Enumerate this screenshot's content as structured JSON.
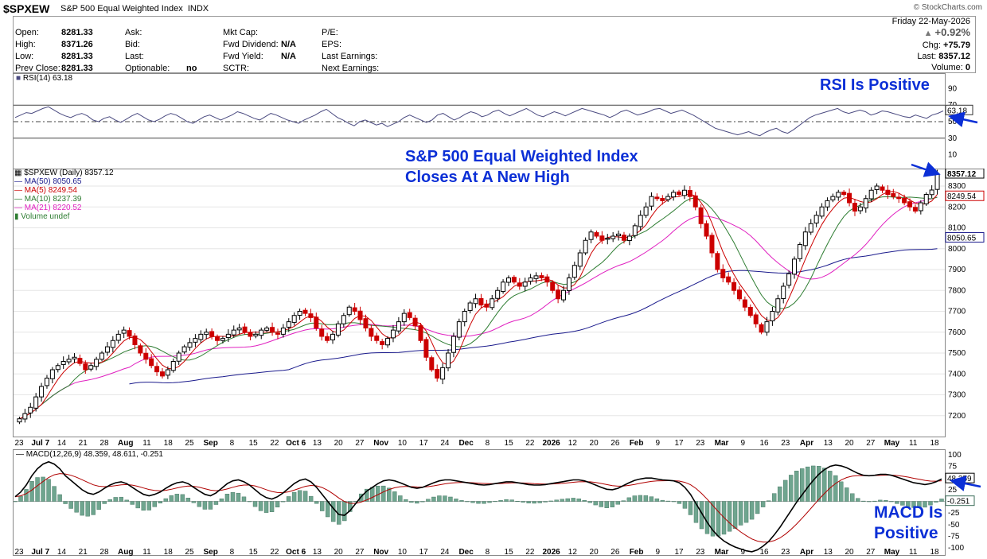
{
  "header": {
    "symbol": "$SPXEW",
    "name": "S&P 500 Equal Weighted Index",
    "exchange": "INDX",
    "logo": "© StockCharts.com"
  },
  "info": {
    "col1": [
      {
        "label": "Open:",
        "value": "8281.33"
      },
      {
        "label": "High:",
        "value": "8371.26"
      },
      {
        "label": "Low:",
        "value": "8281.33"
      },
      {
        "label": "Prev Close:",
        "value": "8281.33"
      }
    ],
    "col2": [
      {
        "label": "Ask:",
        "value": ""
      },
      {
        "label": "Bid:",
        "value": ""
      },
      {
        "label": "Last:",
        "value": ""
      },
      {
        "label": "Optionable:",
        "value": "no"
      }
    ],
    "col3": [
      {
        "label": "Mkt Cap:",
        "value": ""
      },
      {
        "label": "Fwd Dividend:",
        "value": "N/A"
      },
      {
        "label": "Fwd Yield:",
        "value": "N/A"
      },
      {
        "label": "SCTR:",
        "value": ""
      }
    ],
    "col4": [
      {
        "label": "P/E:",
        "value": ""
      },
      {
        "label": "EPS:",
        "value": ""
      },
      {
        "label": "Last Earnings:",
        "value": ""
      },
      {
        "label": "Next Earnings:",
        "value": ""
      }
    ],
    "date": "Friday  22-May-2026",
    "pct_change": "+0.92%",
    "chg_label": "Chg:",
    "chg_value": "+75.79",
    "last_label": "Last:",
    "last_value": "8357.12",
    "volume_label": "Volume:",
    "volume_value": "0"
  },
  "annotations": {
    "rsi": "RSI Is Positive",
    "price_line1": "S&P 500 Equal Weighted Index",
    "price_line2": "Closes At A New High",
    "macd_line1": "MACD Is",
    "macd_line2": "Positive"
  },
  "colors": {
    "up": "#000000",
    "down": "#cc0000",
    "ma50": "#1a1a8c",
    "ma5": "#cc0000",
    "ma10": "#2e7d32",
    "ma21": "#e020c0",
    "rsi": "#4a4a80",
    "macd": "#000000",
    "signal": "#b00000",
    "hist": "#6fa58f",
    "annotation": "#0b2fd6"
  },
  "chart_data": [
    {
      "type": "line",
      "name": "RSI",
      "legend": "RSI(14) 63.18",
      "last_label": "63.18",
      "ylim": [
        0,
        100
      ],
      "yticks": [
        90,
        70,
        50,
        30,
        10
      ],
      "levels": [
        70,
        50,
        30
      ],
      "values": [
        55,
        58,
        61,
        60,
        63,
        66,
        68,
        64,
        60,
        57,
        55,
        58,
        60,
        57,
        52,
        50,
        54,
        56,
        52,
        49,
        53,
        57,
        60,
        56,
        52,
        50,
        53,
        57,
        60,
        58,
        54,
        50,
        48,
        52,
        56,
        58,
        55,
        52,
        55,
        58,
        62,
        60,
        57,
        54,
        52,
        56,
        60,
        58,
        55,
        52,
        50,
        48,
        52,
        55,
        58,
        62,
        65,
        60,
        55,
        52,
        48,
        45,
        50,
        52,
        49,
        46,
        48,
        44,
        47,
        50,
        55,
        58,
        55,
        52,
        49,
        52,
        58,
        60,
        56,
        52,
        55,
        59,
        62,
        60,
        56,
        58,
        62,
        64,
        60,
        57,
        60,
        63,
        66,
        62,
        58,
        56,
        59,
        62,
        60,
        57,
        60,
        63,
        66,
        64,
        62,
        60,
        58,
        55,
        58,
        62,
        64,
        61,
        58,
        60,
        62,
        65,
        66,
        63,
        60,
        62,
        64,
        61,
        58,
        54,
        50,
        46,
        42,
        40,
        38,
        36,
        34,
        36,
        38,
        35,
        33,
        37,
        40,
        42,
        38,
        36,
        40,
        45,
        50,
        55,
        58,
        60,
        62,
        64,
        66,
        62,
        60,
        62,
        64,
        62,
        58,
        60,
        63,
        62,
        60,
        58,
        56,
        55,
        58,
        56,
        54,
        58,
        60,
        63
      ]
    },
    {
      "type": "bar",
      "name": "$SPXEW",
      "legend": "$SPXEW (Daily) 8357.12",
      "last_label": "8357.12",
      "ylim": [
        7100,
        8380
      ],
      "yticks": [
        8300,
        8200,
        8100,
        8000,
        7900,
        7800,
        7700,
        7600,
        7500,
        7400,
        7300,
        7200
      ],
      "x_labels": [
        "23",
        "Jul 7",
        "14",
        "21",
        "28",
        "Aug",
        "11",
        "18",
        "25",
        "Sep",
        "8",
        "15",
        "22",
        "Oct 6",
        "13",
        "20",
        "27",
        "Nov",
        "10",
        "17",
        "24",
        "Dec",
        "8",
        "15",
        "22",
        "2026",
        "12",
        "20",
        "26",
        "Feb",
        "9",
        "17",
        "23",
        "Mar",
        "9",
        "16",
        "23",
        "Apr",
        "13",
        "20",
        "27",
        "May",
        "11",
        "18"
      ],
      "closes": [
        7185,
        7210,
        7240,
        7290,
        7340,
        7380,
        7420,
        7440,
        7460,
        7470,
        7480,
        7450,
        7420,
        7440,
        7470,
        7500,
        7530,
        7560,
        7590,
        7610,
        7580,
        7540,
        7500,
        7470,
        7440,
        7410,
        7390,
        7420,
        7460,
        7500,
        7530,
        7550,
        7570,
        7590,
        7600,
        7580,
        7560,
        7570,
        7590,
        7610,
        7620,
        7600,
        7580,
        7590,
        7610,
        7620,
        7600,
        7590,
        7620,
        7650,
        7680,
        7700,
        7690,
        7670,
        7620,
        7580,
        7560,
        7590,
        7640,
        7680,
        7720,
        7700,
        7660,
        7620,
        7580,
        7560,
        7540,
        7570,
        7610,
        7650,
        7690,
        7670,
        7630,
        7560,
        7480,
        7420,
        7380,
        7430,
        7500,
        7580,
        7650,
        7700,
        7740,
        7760,
        7730,
        7720,
        7760,
        7800,
        7840,
        7860,
        7840,
        7820,
        7840,
        7860,
        7870,
        7860,
        7840,
        7800,
        7760,
        7800,
        7860,
        7920,
        7980,
        8040,
        8080,
        8060,
        8040,
        8050,
        8060,
        8070,
        8040,
        8060,
        8110,
        8160,
        8200,
        8250,
        8240,
        8230,
        8250,
        8270,
        8260,
        8280,
        8250,
        8200,
        8120,
        8060,
        7980,
        7900,
        7860,
        7840,
        7800,
        7760,
        7720,
        7680,
        7640,
        7600,
        7650,
        7700,
        7760,
        7820,
        7880,
        7950,
        8020,
        8080,
        8120,
        8160,
        8200,
        8230,
        8250,
        8270,
        8260,
        8220,
        8180,
        8200,
        8240,
        8280,
        8300,
        8280,
        8260,
        8250,
        8240,
        8220,
        8200,
        8180,
        8220,
        8260,
        8281,
        8357
      ],
      "series": [
        {
          "name": "MA(50) 8050.65",
          "label": "8050.65"
        },
        {
          "name": "MA(5) 8249.54",
          "label": "8249.54"
        },
        {
          "name": "MA(10) 8237.39",
          "label": ""
        },
        {
          "name": "MA(21) 8220.52",
          "label": ""
        },
        {
          "name": "Volume undef",
          "label": ""
        }
      ]
    },
    {
      "type": "line",
      "name": "MACD",
      "legend": "MACD(12,26,9) 48.359, 48.611, -0.251",
      "last_labels": [
        "48.359",
        "-0.251"
      ],
      "ylim": [
        -115,
        110
      ],
      "yticks": [
        100,
        75,
        50,
        25,
        0,
        -25,
        -50,
        -75,
        -100
      ],
      "macd": [
        10,
        20,
        35,
        55,
        70,
        80,
        85,
        80,
        70,
        55,
        45,
        35,
        25,
        18,
        15,
        20,
        28,
        35,
        40,
        42,
        38,
        30,
        22,
        15,
        12,
        15,
        20,
        28,
        35,
        40,
        42,
        38,
        30,
        22,
        15,
        12,
        18,
        28,
        38,
        44,
        46,
        42,
        35,
        25,
        15,
        8,
        5,
        10,
        18,
        28,
        38,
        45,
        48,
        42,
        30,
        15,
        0,
        -15,
        -28,
        -30,
        -20,
        -5,
        10,
        22,
        30,
        38,
        44,
        46,
        44,
        40,
        35,
        30,
        28,
        30,
        35,
        40,
        44,
        46,
        46,
        44,
        42,
        40,
        38,
        36,
        35,
        36,
        38,
        40,
        42,
        42,
        40,
        38,
        36,
        35,
        35,
        36,
        38,
        40,
        42,
        44,
        46,
        46,
        44,
        40,
        35,
        30,
        26,
        25,
        28,
        34,
        40,
        45,
        48,
        50,
        50,
        48,
        46,
        45,
        44,
        40,
        30,
        15,
        -5,
        -25,
        -45,
        -62,
        -75,
        -85,
        -92,
        -98,
        -102,
        -106,
        -108,
        -104,
        -96,
        -86,
        -72,
        -56,
        -38,
        -20,
        -2,
        14,
        30,
        45,
        58,
        68,
        75,
        78,
        76,
        72,
        66,
        60,
        56,
        55,
        56,
        58,
        58,
        56,
        52,
        48,
        44,
        40,
        38,
        36,
        38,
        42,
        48
      ]
    }
  ]
}
